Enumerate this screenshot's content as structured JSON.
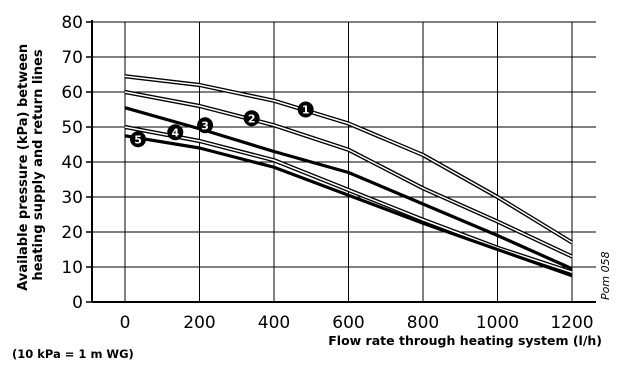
{
  "chart_data": {
    "type": "line",
    "xlabel": "Flow rate through heating system (l/h)",
    "ylabel_lines": [
      "Available pressure (kPa) between",
      "heating supply and return lines"
    ],
    "xlim": [
      0,
      1200
    ],
    "ylim": [
      0,
      80
    ],
    "x_ticks": [
      "0",
      "200",
      "400",
      "600",
      "800",
      "1000",
      "1200"
    ],
    "y_ticks": [
      "0",
      "10",
      "20",
      "30",
      "40",
      "50",
      "60",
      "70",
      "80"
    ],
    "grid": true,
    "note": "(10 kPa = 1 m WG)",
    "code": "Pom 058",
    "series": [
      {
        "name": "1",
        "x": [
          0,
          200,
          400,
          600,
          800,
          1000,
          1200
        ],
        "y": [
          64.5,
          62,
          57.5,
          51,
          42,
          30,
          17
        ],
        "style": "double"
      },
      {
        "name": "2",
        "x": [
          0,
          200,
          400,
          600,
          800,
          1000,
          1200
        ],
        "y": [
          60,
          56,
          50.5,
          43.5,
          32.5,
          23,
          13
        ],
        "style": "double"
      },
      {
        "name": "3",
        "x": [
          0,
          200,
          400,
          600,
          800,
          1000,
          1200
        ],
        "y": [
          55.5,
          49.5,
          43,
          37,
          28,
          19,
          9.5
        ],
        "style": "thick"
      },
      {
        "name": "4",
        "x": [
          0,
          200,
          400,
          600,
          800,
          1000,
          1200
        ],
        "y": [
          50,
          46,
          40.5,
          32,
          23.5,
          15.5,
          8.5
        ],
        "style": "double"
      },
      {
        "name": "5",
        "x": [
          0,
          200,
          400,
          600,
          800,
          1000,
          1200
        ],
        "y": [
          47.5,
          44,
          38.5,
          30.5,
          22.5,
          15,
          7.5
        ],
        "style": "thick"
      }
    ],
    "markers": [
      {
        "label": "1",
        "x": 485,
        "y": 55
      },
      {
        "label": "2",
        "x": 340,
        "y": 52.5
      },
      {
        "label": "3",
        "x": 215,
        "y": 50.5
      },
      {
        "label": "4",
        "x": 135,
        "y": 48.5
      },
      {
        "label": "5",
        "x": 35,
        "y": 46.5
      }
    ]
  }
}
